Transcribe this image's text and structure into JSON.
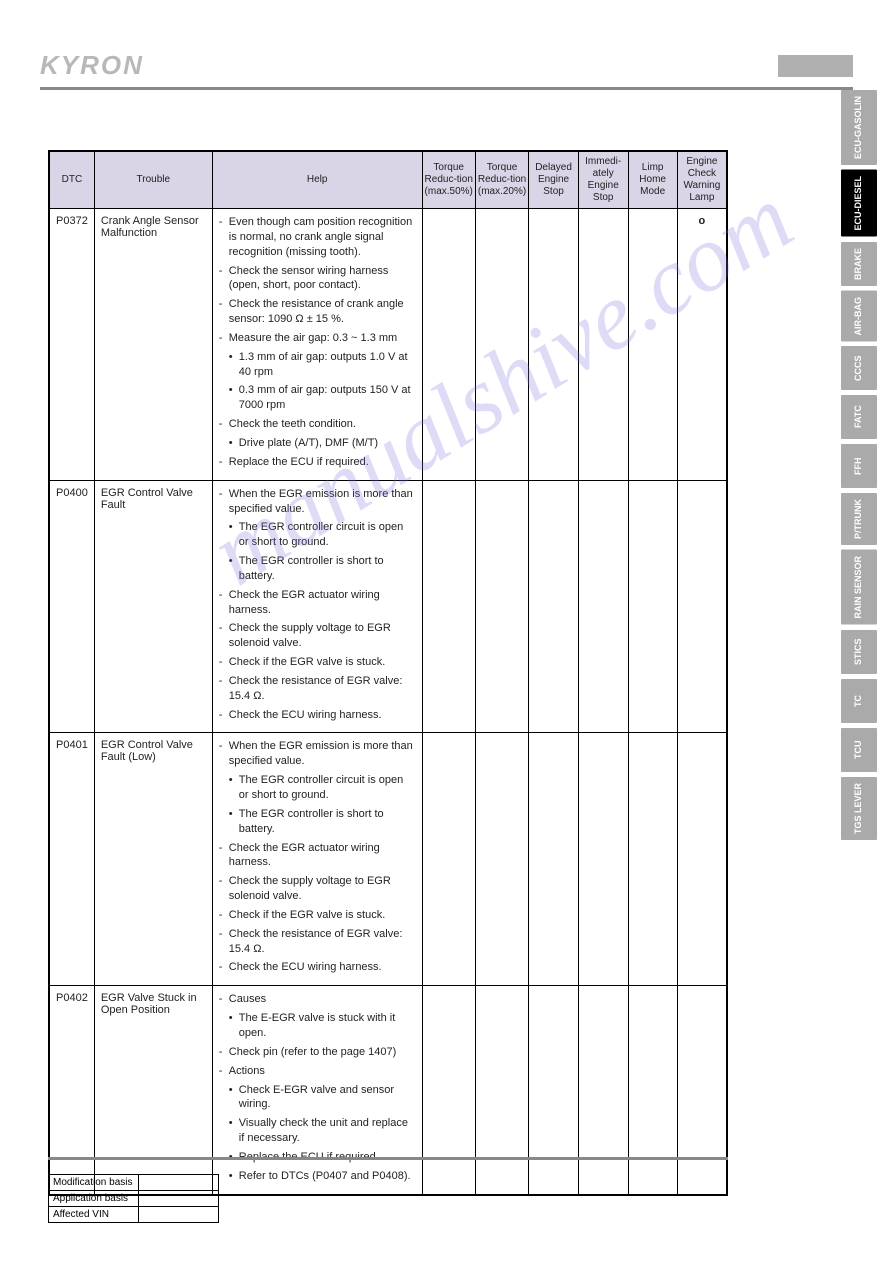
{
  "brand": "KYRON",
  "watermark_text": "manualshive.com",
  "columns": {
    "dtc": "DTC",
    "trouble": "Trouble",
    "help": "Help",
    "tr50": "Torque Reduc-tion (max.50%)",
    "tr20": "Torque Reduc-tion (max.20%)",
    "delayed": "Delayed Engine Stop",
    "immediate": "Immedi-ately Engine Stop",
    "limp": "Limp Home Mode",
    "lamp": "Engine Check Warning Lamp"
  },
  "rows": [
    {
      "dtc": "P0372",
      "trouble": "Crank Angle Sensor Malfunction",
      "help": [
        {
          "t": "dash",
          "v": "Even though cam position recognition is normal, no crank angle signal recognition (missing tooth)."
        },
        {
          "t": "dash",
          "v": "Check the sensor wiring harness (open, short, poor contact)."
        },
        {
          "t": "dash",
          "v": "Check the resistance of crank angle sensor: 1090 Ω ± 15 %."
        },
        {
          "t": "dash",
          "v": "Measure the air gap: 0.3 ~ 1.3 mm"
        },
        {
          "t": "bullet",
          "v": "1.3 mm of air gap: outputs 1.0 V at 40 rpm"
        },
        {
          "t": "bullet",
          "v": "0.3 mm of air gap: outputs 150 V at 7000 rpm"
        },
        {
          "t": "dash",
          "v": "Check the teeth condition."
        },
        {
          "t": "bullet",
          "v": "Drive plate (A/T), DMF (M/T)"
        },
        {
          "t": "dash",
          "v": "Replace the ECU if required."
        }
      ],
      "lamp": "o"
    },
    {
      "dtc": "P0400",
      "trouble": "EGR Control Valve Fault",
      "help": [
        {
          "t": "dash",
          "v": "When the EGR emission is more than specified value."
        },
        {
          "t": "bullet",
          "v": "The EGR controller circuit is open or short to ground."
        },
        {
          "t": "bullet",
          "v": "The EGR controller is short to battery."
        },
        {
          "t": "dash",
          "v": "Check the EGR actuator wiring harness."
        },
        {
          "t": "dash",
          "v": "Check the supply voltage to EGR solenoid valve."
        },
        {
          "t": "dash",
          "v": "Check if the EGR valve is stuck."
        },
        {
          "t": "dash",
          "v": "Check the resistance of EGR valve: 15.4 Ω."
        },
        {
          "t": "dash",
          "v": "Check the ECU wiring harness."
        }
      ],
      "lamp": ""
    },
    {
      "dtc": "P0401",
      "trouble": "EGR Control Valve Fault (Low)",
      "help": [
        {
          "t": "dash",
          "v": "When the EGR emission is more than specified value."
        },
        {
          "t": "bullet",
          "v": "The EGR controller circuit is open or short to ground."
        },
        {
          "t": "bullet",
          "v": "The EGR controller is short to battery."
        },
        {
          "t": "dash",
          "v": "Check the EGR actuator wiring harness."
        },
        {
          "t": "dash",
          "v": "Check the supply voltage to EGR solenoid valve."
        },
        {
          "t": "dash",
          "v": "Check if the EGR valve is stuck."
        },
        {
          "t": "dash",
          "v": "Check the resistance of EGR valve: 15.4 Ω."
        },
        {
          "t": "dash",
          "v": "Check the ECU wiring harness."
        }
      ],
      "lamp": ""
    },
    {
      "dtc": "P0402",
      "trouble": "EGR Valve Stuck in Open Position",
      "help": [
        {
          "t": "dash",
          "v": "Causes"
        },
        {
          "t": "bullet",
          "v": "The E-EGR valve is stuck with it open."
        },
        {
          "t": "dash",
          "v": "Check pin (refer to the page 1407)"
        },
        {
          "t": "dash",
          "v": "Actions"
        },
        {
          "t": "bullet",
          "v": "Check E-EGR valve and sensor wiring."
        },
        {
          "t": "bullet",
          "v": "Visually check the unit and replace if necessary."
        },
        {
          "t": "bullet",
          "v": "Replace the ECU if required."
        },
        {
          "t": "bullet",
          "v": "Refer to DTCs (P0407 and P0408)."
        }
      ],
      "lamp": ""
    }
  ],
  "tabs": [
    {
      "label": "ECU-GASOLIN",
      "active": false
    },
    {
      "label": "ECU-DIESEL",
      "active": true
    },
    {
      "label": "BRAKE",
      "active": false
    },
    {
      "label": "AIR-BAG",
      "active": false
    },
    {
      "label": "CCCS",
      "active": false
    },
    {
      "label": "FATC",
      "active": false
    },
    {
      "label": "FFH",
      "active": false
    },
    {
      "label": "P/TRUNK",
      "active": false
    },
    {
      "label": "RAIN SENSOR",
      "active": false
    },
    {
      "label": "STICS",
      "active": false
    },
    {
      "label": "TC",
      "active": false
    },
    {
      "label": "TCU",
      "active": false
    },
    {
      "label": "TGS LEVER",
      "active": false
    }
  ],
  "footer": {
    "mod": "Modification basis",
    "app": "Application basis",
    "vin": "Affected VIN"
  }
}
